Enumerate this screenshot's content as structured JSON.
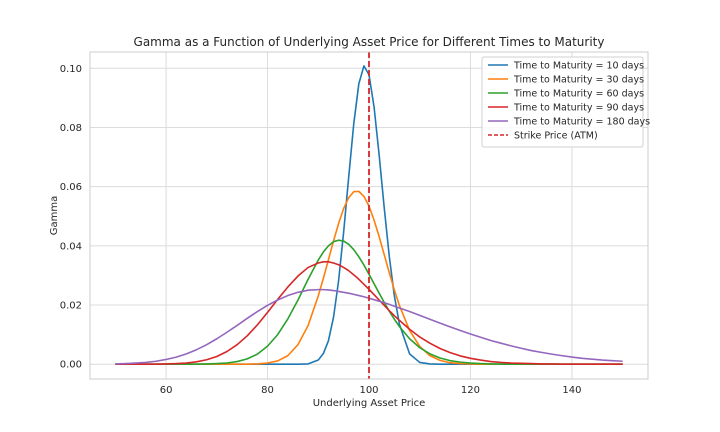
{
  "chart_data": {
    "type": "line",
    "title": "Gamma as a Function of Underlying Asset Price for Different Times to Maturity",
    "xlabel": "Underlying Asset Price",
    "ylabel": "Gamma",
    "xlim": [
      45,
      155
    ],
    "ylim": [
      -0.005,
      0.1055
    ],
    "xticks": [
      60,
      80,
      100,
      120,
      140
    ],
    "yticks": [
      0.0,
      0.02,
      0.04,
      0.06,
      0.08,
      0.1
    ],
    "ytick_labels": [
      "0.00",
      "0.02",
      "0.04",
      "0.06",
      "0.08",
      "0.10"
    ],
    "grid": true,
    "legend_position": "top-right",
    "x": [
      50,
      52,
      54,
      56,
      58,
      60,
      62,
      64,
      66,
      68,
      70,
      72,
      74,
      76,
      78,
      80,
      82,
      84,
      86,
      88,
      90,
      91,
      92,
      93,
      94,
      95,
      96,
      97,
      98,
      99,
      100,
      101,
      102,
      103,
      104,
      105,
      106,
      108,
      110,
      112,
      114,
      116,
      118,
      120,
      122,
      124,
      126,
      128,
      130,
      132,
      134,
      136,
      138,
      140,
      142,
      144,
      146,
      148,
      150
    ],
    "series": [
      {
        "name": "Time to Maturity = 10 days",
        "color": "#1f77b4",
        "style": "solid",
        "values": [
          0,
          0,
          0,
          0,
          0,
          0,
          0,
          0,
          0,
          0,
          0,
          0,
          0,
          0,
          0,
          0,
          0,
          0,
          0,
          0.0001,
          0.0014,
          0.0036,
          0.0079,
          0.0158,
          0.0281,
          0.0446,
          0.0633,
          0.0813,
          0.0948,
          0.1008,
          0.0978,
          0.0869,
          0.0707,
          0.0529,
          0.0364,
          0.0231,
          0.0135,
          0.0035,
          0.0006,
          0.0001,
          0,
          0,
          0,
          0,
          0,
          0,
          0,
          0,
          0,
          0,
          0,
          0,
          0,
          0,
          0,
          0,
          0,
          0,
          0
        ]
      },
      {
        "name": "Time to Maturity = 30 days",
        "color": "#ff7f0e",
        "style": "solid",
        "values": [
          0,
          0,
          0,
          0,
          0,
          0,
          0,
          0,
          0,
          0,
          0,
          0,
          0,
          0,
          0.0001,
          0.0004,
          0.0011,
          0.0029,
          0.0066,
          0.0131,
          0.0231,
          0.029,
          0.0353,
          0.0416,
          0.0475,
          0.0526,
          0.0563,
          0.0583,
          0.0584,
          0.0567,
          0.0534,
          0.0487,
          0.0431,
          0.037,
          0.0309,
          0.0251,
          0.0198,
          0.0114,
          0.006,
          0.0029,
          0.0013,
          0.0005,
          0.0002,
          0.0001,
          0,
          0,
          0,
          0,
          0,
          0,
          0,
          0,
          0,
          0,
          0,
          0,
          0,
          0,
          0
        ]
      },
      {
        "name": "Time to Maturity = 60 days",
        "color": "#2ca02c",
        "style": "solid",
        "values": [
          0,
          0,
          0,
          0,
          0,
          0,
          0,
          0,
          0,
          0.0001,
          0.0002,
          0.0004,
          0.0009,
          0.0018,
          0.0034,
          0.0061,
          0.01,
          0.0153,
          0.0217,
          0.0287,
          0.0352,
          0.0379,
          0.04,
          0.0414,
          0.0419,
          0.0416,
          0.0405,
          0.0387,
          0.0363,
          0.0335,
          0.0304,
          0.0272,
          0.024,
          0.0209,
          0.0179,
          0.0152,
          0.0127,
          0.0086,
          0.0056,
          0.0035,
          0.0021,
          0.0012,
          0.0007,
          0.0004,
          0.0002,
          0.0001,
          0,
          0,
          0,
          0,
          0,
          0,
          0,
          0,
          0,
          0,
          0,
          0,
          0
        ]
      },
      {
        "name": "Time to Maturity = 90 days",
        "color": "#d62728",
        "style": "solid",
        "values": [
          0,
          0,
          0,
          0,
          0,
          0.0001,
          0.0002,
          0.0004,
          0.0008,
          0.0015,
          0.0026,
          0.0043,
          0.0066,
          0.0096,
          0.0133,
          0.0175,
          0.0219,
          0.0261,
          0.0298,
          0.0327,
          0.0342,
          0.0346,
          0.0346,
          0.0342,
          0.0336,
          0.0327,
          0.0316,
          0.0302,
          0.0287,
          0.027,
          0.0253,
          0.0235,
          0.0217,
          0.0199,
          0.0181,
          0.0164,
          0.0148,
          0.0118,
          0.0092,
          0.0071,
          0.0053,
          0.0039,
          0.0028,
          0.002,
          0.0014,
          0.0009,
          0.0006,
          0.0004,
          0.0003,
          0.0002,
          0.0001,
          0.0001,
          0,
          0,
          0,
          0,
          0,
          0,
          0
        ]
      },
      {
        "name": "Time to Maturity = 180 days",
        "color": "#9467bd",
        "style": "solid",
        "values": [
          0.0001,
          0.0002,
          0.0004,
          0.0006,
          0.001,
          0.0016,
          0.0024,
          0.0035,
          0.0049,
          0.0066,
          0.0086,
          0.0108,
          0.0131,
          0.0155,
          0.0178,
          0.0199,
          0.0217,
          0.0232,
          0.0243,
          0.025,
          0.0252,
          0.0252,
          0.0251,
          0.0249,
          0.0246,
          0.0243,
          0.024,
          0.0236,
          0.0232,
          0.0228,
          0.0223,
          0.0218,
          0.0213,
          0.0208,
          0.0202,
          0.0196,
          0.019,
          0.0178,
          0.0165,
          0.0152,
          0.0139,
          0.0126,
          0.0114,
          0.0102,
          0.0091,
          0.008,
          0.0071,
          0.0062,
          0.0054,
          0.0046,
          0.004,
          0.0034,
          0.0029,
          0.0024,
          0.002,
          0.0017,
          0.0014,
          0.0012,
          0.001
        ]
      }
    ],
    "reference_line": {
      "name": "Strike Price (ATM)",
      "x": 100,
      "color": "#d62728",
      "style": "dashed"
    }
  }
}
